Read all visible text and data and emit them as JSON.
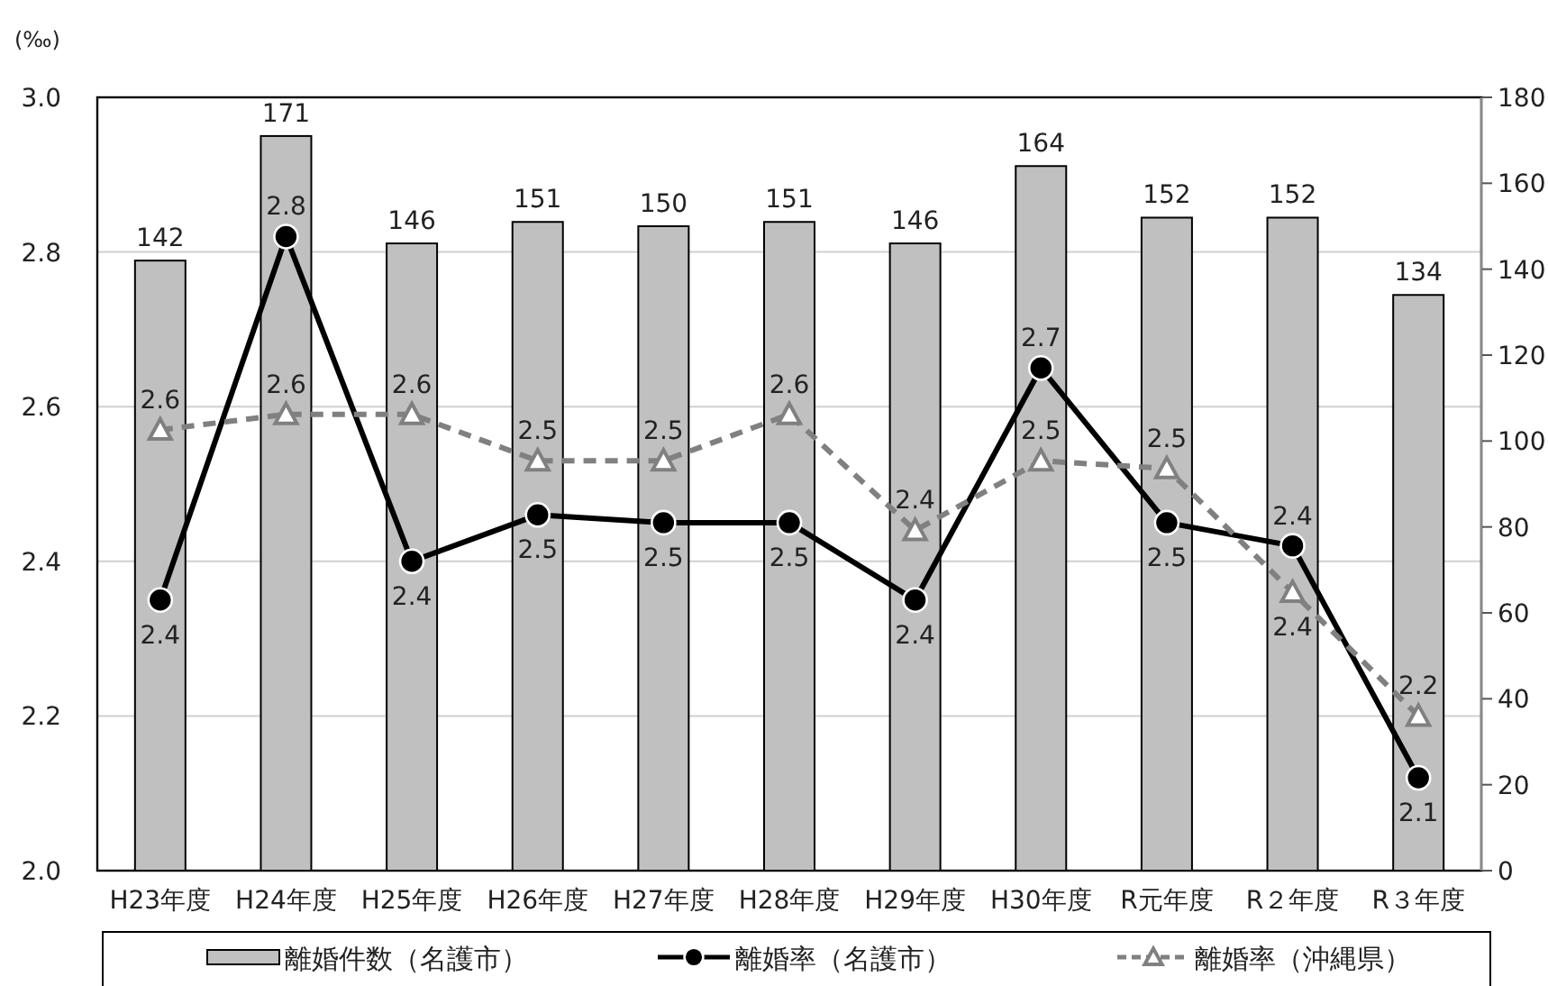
{
  "chart_data": {
    "type": "bar",
    "ylabel": "(‰)",
    "categories": [
      "H23年度",
      "H24年度",
      "H25年度",
      "H26年度",
      "H27年度",
      "H28年度",
      "H29年度",
      "H30年度",
      "R元年度",
      "R２年度",
      "R３年度"
    ],
    "series": [
      {
        "name": "離婚件数（名護市）",
        "axis": "y2",
        "color": "#c0c0c0",
        "data_labels": true,
        "values": [
          142,
          171,
          146,
          151,
          150,
          151,
          146,
          164,
          152,
          152,
          134
        ]
      },
      {
        "name": "離婚率（名護市）",
        "type": "line",
        "color": "#000000",
        "marker": "circle",
        "line_style": "solid",
        "values": [
          2.35,
          2.82,
          2.4,
          2.46,
          2.45,
          2.45,
          2.35,
          2.65,
          2.45,
          2.42,
          2.12
        ],
        "value_labels": [
          "2.4",
          "2.8",
          "2.4",
          "2.5",
          "2.5",
          "2.5",
          "2.4",
          "2.7",
          "2.5",
          "2.4",
          "2.1"
        ]
      },
      {
        "name": "離婚率（沖縄県）",
        "type": "line",
        "color": "#808080",
        "marker": "triangle",
        "line_style": "dashed",
        "values": [
          2.57,
          2.59,
          2.59,
          2.53,
          2.53,
          2.59,
          2.44,
          2.53,
          2.52,
          2.36,
          2.2
        ],
        "value_labels": [
          "2.6",
          "2.6",
          "2.6",
          "2.5",
          "2.5",
          "2.6",
          "2.4",
          "2.5",
          "2.5",
          "2.4",
          "2.2"
        ]
      }
    ],
    "ylim": [
      2.0,
      3.0
    ],
    "yticks": [
      {
        "value": 2.0,
        "label": "2.0"
      },
      {
        "value": 2.2,
        "label": "2.2"
      },
      {
        "value": 2.4,
        "label": "2.4"
      },
      {
        "value": 2.6,
        "label": "2.6"
      },
      {
        "value": 2.8,
        "label": "2.8"
      },
      {
        "value": 3.0,
        "label": "3.0"
      }
    ],
    "y2lim": [
      0,
      180
    ],
    "y2ticks": [
      0,
      20,
      40,
      60,
      80,
      100,
      120,
      140,
      160,
      180
    ],
    "grid": "y",
    "legend": "bottom"
  }
}
